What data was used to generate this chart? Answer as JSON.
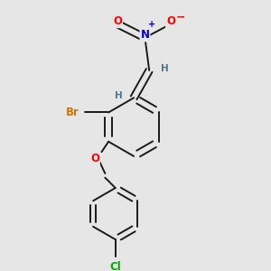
{
  "bg_color": "#e6e6e6",
  "bond_color": "#1a1a1a",
  "bond_width": 1.4,
  "atom_colors": {
    "O": "#ff0000",
    "N": "#0000cc",
    "Br": "#cc7700",
    "Cl": "#00aa00",
    "H": "#4a7a8a",
    "C": "#1a1a1a"
  },
  "font_size": 8.5,
  "font_size_h": 7.5
}
